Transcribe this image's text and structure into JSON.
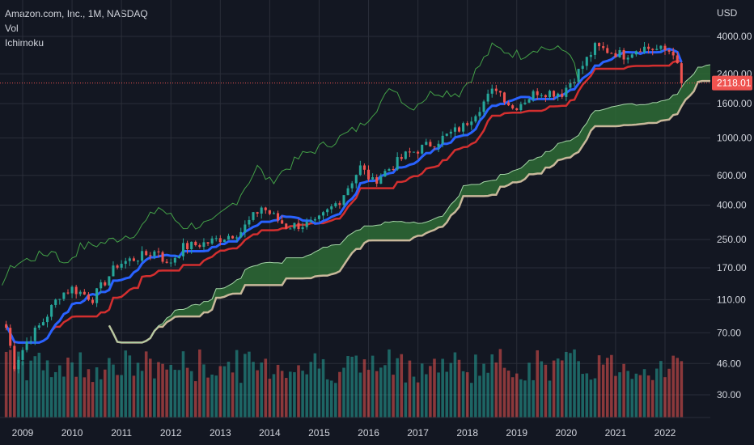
{
  "legend": {
    "symbol": "Amazon.com, Inc., 1M, NASDAQ",
    "vol": "Vol",
    "ichimoku": "Ichimoku"
  },
  "currency": "USD",
  "last_price": "2118.01",
  "colors": {
    "background": "#131722",
    "grid": "#2a2e39",
    "up": "#26a69a",
    "down": "#ef5350",
    "conversion": "#2962ff",
    "base": "#d32f2f",
    "lagging": "#43a047",
    "cloud_fill": "#2e6b35",
    "lead_b": "#c8b89a",
    "lead_a": "#a5d6a7",
    "price_line": "#ef5350"
  },
  "chart_data": {
    "type": "candlestick",
    "scale": "log",
    "ylim": [
      24,
      6000
    ],
    "y_ticks": [
      "4000.00",
      "2400.00",
      "1600.00",
      "1000.00",
      "600.00",
      "400.00",
      "250.00",
      "170.00",
      "110.00",
      "70.00",
      "46.00",
      "30.00"
    ],
    "x_ticks": [
      "2009",
      "2010",
      "2011",
      "2012",
      "2013",
      "2014",
      "2015",
      "2016",
      "2017",
      "2018",
      "2019",
      "2020",
      "2021",
      "2022"
    ],
    "price_waypoints": [
      [
        "2008-09",
        75
      ],
      [
        "2008-11",
        45
      ],
      [
        "2009-02",
        62
      ],
      [
        "2009-06",
        82
      ],
      [
        "2009-10",
        118
      ],
      [
        "2010-01",
        128
      ],
      [
        "2010-06",
        112
      ],
      [
        "2010-12",
        178
      ],
      [
        "2011-06",
        200
      ],
      [
        "2011-10",
        215
      ],
      [
        "2011-12",
        175
      ],
      [
        "2012-04",
        225
      ],
      [
        "2012-10",
        240
      ],
      [
        "2013-06",
        280
      ],
      [
        "2013-11",
        390
      ],
      [
        "2014-05",
        300
      ],
      [
        "2014-12",
        310
      ],
      [
        "2015-06",
        430
      ],
      [
        "2015-11",
        670
      ],
      [
        "2016-02",
        550
      ],
      [
        "2016-10",
        790
      ],
      [
        "2017-06",
        970
      ],
      [
        "2017-12",
        1170
      ],
      [
        "2018-08",
        2000
      ],
      [
        "2018-12",
        1500
      ],
      [
        "2019-06",
        1890
      ],
      [
        "2019-12",
        1850
      ],
      [
        "2020-04",
        2480
      ],
      [
        "2020-08",
        3450
      ],
      [
        "2021-03",
        3100
      ],
      [
        "2021-07",
        3450
      ],
      [
        "2021-12",
        3330
      ],
      [
        "2022-03",
        3260
      ],
      [
        "2022-05",
        2118
      ]
    ],
    "ichimoku": {
      "conversion_period": 9,
      "base_period": 26,
      "span_b_period": 52,
      "displacement": 26
    },
    "volume": "monthly bars, colored by candle direction"
  }
}
